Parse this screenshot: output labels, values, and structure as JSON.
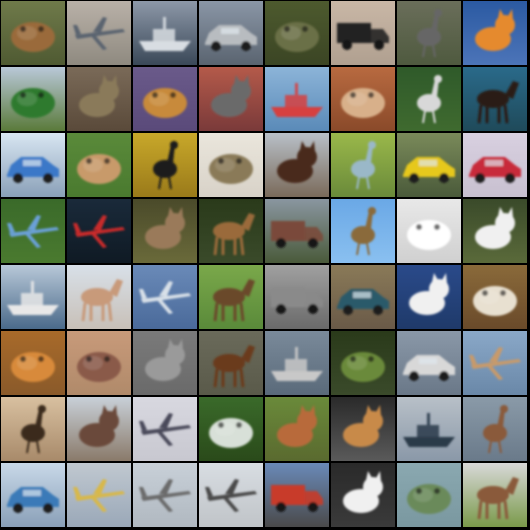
{
  "grid": {
    "rows": 8,
    "cols": 8,
    "background": "#000000",
    "tiles": [
      {
        "label": "frog",
        "sky": "#6f7a4a",
        "ground": "#4f5a32",
        "subject": "#9a6a3a",
        "shape": "blob"
      },
      {
        "label": "airplane",
        "sky": "#b9b1a8",
        "ground": "#8f8a80",
        "subject": "#5a6470",
        "shape": "plane"
      },
      {
        "label": "ship",
        "sky": "#8d98a8",
        "ground": "#3a4858",
        "subject": "#d8dde2",
        "shape": "boat"
      },
      {
        "label": "automobile",
        "sky": "#8a96a6",
        "ground": "#5a6470",
        "subject": "#b8bcc0",
        "shape": "car"
      },
      {
        "label": "frog",
        "sky": "#4d5a2e",
        "ground": "#3b4524",
        "subject": "#6b7047",
        "shape": "blob"
      },
      {
        "label": "truck",
        "sky": "#c9b7a6",
        "ground": "#b0a090",
        "subject": "#222222",
        "shape": "truck"
      },
      {
        "label": "bird",
        "sky": "#6a6e5a",
        "ground": "#4f5a3f",
        "subject": "#666666",
        "shape": "bird"
      },
      {
        "label": "cat",
        "sky": "#2b5aa2",
        "ground": "#4c74b8",
        "subject": "#e58a2e",
        "shape": "animal"
      },
      {
        "label": "frog",
        "sky": "#b9c8d8",
        "ground": "#5a7a3a",
        "subject": "#2f7a2f",
        "shape": "blob"
      },
      {
        "label": "cat",
        "sky": "#7a6a58",
        "ground": "#5a4a3a",
        "subject": "#8a7a5a",
        "shape": "animal"
      },
      {
        "label": "frog",
        "sky": "#6a5a8a",
        "ground": "#5a4a7a",
        "subject": "#c88a3a",
        "shape": "blob"
      },
      {
        "label": "cat",
        "sky": "#b45a4a",
        "ground": "#7a3a3a",
        "subject": "#6a6a6a",
        "shape": "animal"
      },
      {
        "label": "ship",
        "sky": "#8cb4d8",
        "ground": "#5a8ab8",
        "subject": "#d64040",
        "shape": "boat"
      },
      {
        "label": "cat",
        "sky": "#b86a40",
        "ground": "#8a4a2a",
        "subject": "#d8b08a",
        "shape": "blob"
      },
      {
        "label": "bird",
        "sky": "#2f5a2a",
        "ground": "#3f6a2f",
        "subject": "#d8d8d8",
        "shape": "bird"
      },
      {
        "label": "horse",
        "sky": "#2a6a8a",
        "ground": "#1f4a5a",
        "subject": "#2a1a12",
        "shape": "horse"
      },
      {
        "label": "automobile",
        "sky": "#d8e6f2",
        "ground": "#8aa0b8",
        "subject": "#3a78c8",
        "shape": "car"
      },
      {
        "label": "frog",
        "sky": "#5a8a3a",
        "ground": "#4a7a2f",
        "subject": "#c89a6a",
        "shape": "blob"
      },
      {
        "label": "bird",
        "sky": "#c8a82a",
        "ground": "#9a7a1a",
        "subject": "#1a1a1a",
        "shape": "bird"
      },
      {
        "label": "frog",
        "sky": "#eae6dc",
        "ground": "#d8d2c8",
        "subject": "#8a7a58",
        "shape": "blob"
      },
      {
        "label": "dog",
        "sky": "#b8c0c8",
        "ground": "#7a6a5a",
        "subject": "#4a2a1a",
        "shape": "animal"
      },
      {
        "label": "bird",
        "sky": "#9ab84a",
        "ground": "#6a8a3a",
        "subject": "#9ab8c8",
        "shape": "bird"
      },
      {
        "label": "automobile",
        "sky": "#7a8a5a",
        "ground": "#4a5a3a",
        "subject": "#e6c81a",
        "shape": "car"
      },
      {
        "label": "automobile",
        "sky": "#d8d0e0",
        "ground": "#c8c0d0",
        "subject": "#c82a3a",
        "shape": "car"
      },
      {
        "label": "airplane",
        "sky": "#3a6a2a",
        "ground": "#4a7a2f",
        "subject": "#6aa0d8",
        "shape": "plane"
      },
      {
        "label": "airplane",
        "sky": "#1a2a3a",
        "ground": "#0f1a24",
        "subject": "#c82a2a",
        "shape": "plane"
      },
      {
        "label": "deer",
        "sky": "#4a4a2a",
        "ground": "#6a6a3a",
        "subject": "#9a7a5a",
        "shape": "animal"
      },
      {
        "label": "deer",
        "sky": "#2a3a1a",
        "ground": "#3a4a2a",
        "subject": "#9a6a3a",
        "shape": "horse"
      },
      {
        "label": "truck",
        "sky": "#8a96a0",
        "ground": "#4a5a3a",
        "subject": "#7a4a3a",
        "shape": "truck"
      },
      {
        "label": "bird",
        "sky": "#6aa8e6",
        "ground": "#8ac0f0",
        "subject": "#8a6a3a",
        "shape": "bird"
      },
      {
        "label": "dog",
        "sky": "#e8e8e8",
        "ground": "#d0d0d0",
        "subject": "#ffffff",
        "shape": "blob"
      },
      {
        "label": "dog",
        "sky": "#3a4a2a",
        "ground": "#5a6a3a",
        "subject": "#f0f0f0",
        "shape": "animal"
      },
      {
        "label": "ship",
        "sky": "#b8c8d8",
        "ground": "#4a6a8a",
        "subject": "#e8e8e8",
        "shape": "boat"
      },
      {
        "label": "horse",
        "sky": "#d8e0e8",
        "ground": "#c8c0b8",
        "subject": "#c89a7a",
        "shape": "horse"
      },
      {
        "label": "airplane",
        "sky": "#6a8ab8",
        "ground": "#4a6a9a",
        "subject": "#d8e0e8",
        "shape": "plane"
      },
      {
        "label": "horse",
        "sky": "#7aa84a",
        "ground": "#5a8a3a",
        "subject": "#6a4a2a",
        "shape": "horse"
      },
      {
        "label": "truck",
        "sky": "#a0a0a0",
        "ground": "#6a6a6a",
        "subject": "#8a8a8a",
        "shape": "truck"
      },
      {
        "label": "automobile",
        "sky": "#8a7a58",
        "ground": "#6a5a48",
        "subject": "#2a5a6a",
        "shape": "car"
      },
      {
        "label": "dog",
        "sky": "#2a4a8a",
        "ground": "#1f3a6a",
        "subject": "#f0f0f0",
        "shape": "animal"
      },
      {
        "label": "dog",
        "sky": "#8a6a3a",
        "ground": "#6a4a2a",
        "subject": "#e8e0d0",
        "shape": "blob"
      },
      {
        "label": "frog",
        "sky": "#a86a2a",
        "ground": "#8a5a2a",
        "subject": "#d88a3a",
        "shape": "blob"
      },
      {
        "label": "frog",
        "sky": "#c89a7a",
        "ground": "#b08a6a",
        "subject": "#8a5a4a",
        "shape": "blob"
      },
      {
        "label": "cat",
        "sky": "#7a7a7a",
        "ground": "#6a6a6a",
        "subject": "#9a9a9a",
        "shape": "animal"
      },
      {
        "label": "horse",
        "sky": "#6a6a5a",
        "ground": "#5a5a4a",
        "subject": "#6a3a1a",
        "shape": "horse"
      },
      {
        "label": "ship",
        "sky": "#7a8a9a",
        "ground": "#5a6a7a",
        "subject": "#c8c8c8",
        "shape": "boat"
      },
      {
        "label": "frog",
        "sky": "#2a3a1a",
        "ground": "#3a4a2a",
        "subject": "#6a8a3a",
        "shape": "blob"
      },
      {
        "label": "automobile",
        "sky": "#8a98a8",
        "ground": "#6a7888",
        "subject": "#d8d8d8",
        "shape": "car"
      },
      {
        "label": "airplane",
        "sky": "#8aa8c8",
        "ground": "#6a88a8",
        "subject": "#c89a6a",
        "shape": "plane"
      },
      {
        "label": "bird",
        "sky": "#d8c0a0",
        "ground": "#a88a6a",
        "subject": "#3a2a1a",
        "shape": "bird"
      },
      {
        "label": "deer",
        "sky": "#c8d0d8",
        "ground": "#8a7a6a",
        "subject": "#6a4a3a",
        "shape": "animal"
      },
      {
        "label": "airplane",
        "sky": "#d8d8e0",
        "ground": "#c8c8d0",
        "subject": "#4a4a5a",
        "shape": "plane"
      },
      {
        "label": "frog",
        "sky": "#3a6a2a",
        "ground": "#2a4a1a",
        "subject": "#d8e0d8",
        "shape": "blob"
      },
      {
        "label": "deer",
        "sky": "#6a8a3a",
        "ground": "#5a6a2f",
        "subject": "#b86a3a",
        "shape": "animal"
      },
      {
        "label": "deer",
        "sky": "#2a2a2a",
        "ground": "#5a5a5a",
        "subject": "#c88a4a",
        "shape": "animal"
      },
      {
        "label": "ship",
        "sky": "#b8c0c8",
        "ground": "#8a98a8",
        "subject": "#2a3a4a",
        "shape": "boat"
      },
      {
        "label": "deer",
        "sky": "#8a9aa8",
        "ground": "#6a7a8a",
        "subject": "#8a5a3a",
        "shape": "bird"
      },
      {
        "label": "automobile",
        "sky": "#c8d8e8",
        "ground": "#8aa0b8",
        "subject": "#3a7ab8",
        "shape": "car"
      },
      {
        "label": "airplane",
        "sky": "#c0c8d0",
        "ground": "#9aa8b8",
        "subject": "#d8b84a",
        "shape": "plane"
      },
      {
        "label": "airplane",
        "sky": "#c8d0d8",
        "ground": "#b0b8c0",
        "subject": "#6a6a6a",
        "shape": "plane"
      },
      {
        "label": "airplane",
        "sky": "#d8dde2",
        "ground": "#c0c4c8",
        "subject": "#4a4a4a",
        "shape": "plane"
      },
      {
        "label": "truck",
        "sky": "#6a8ab8",
        "ground": "#4a4a4a",
        "subject": "#c83a2a",
        "shape": "truck"
      },
      {
        "label": "cat",
        "sky": "#2a2a2a",
        "ground": "#3a3a3a",
        "subject": "#f0f0f0",
        "shape": "animal"
      },
      {
        "label": "frog",
        "sky": "#8aa8b0",
        "ground": "#7a98a0",
        "subject": "#6a8a5a",
        "shape": "blob"
      },
      {
        "label": "deer",
        "sky": "#d8d8d8",
        "ground": "#7a9a4a",
        "subject": "#8a5a3a",
        "shape": "horse"
      }
    ]
  }
}
